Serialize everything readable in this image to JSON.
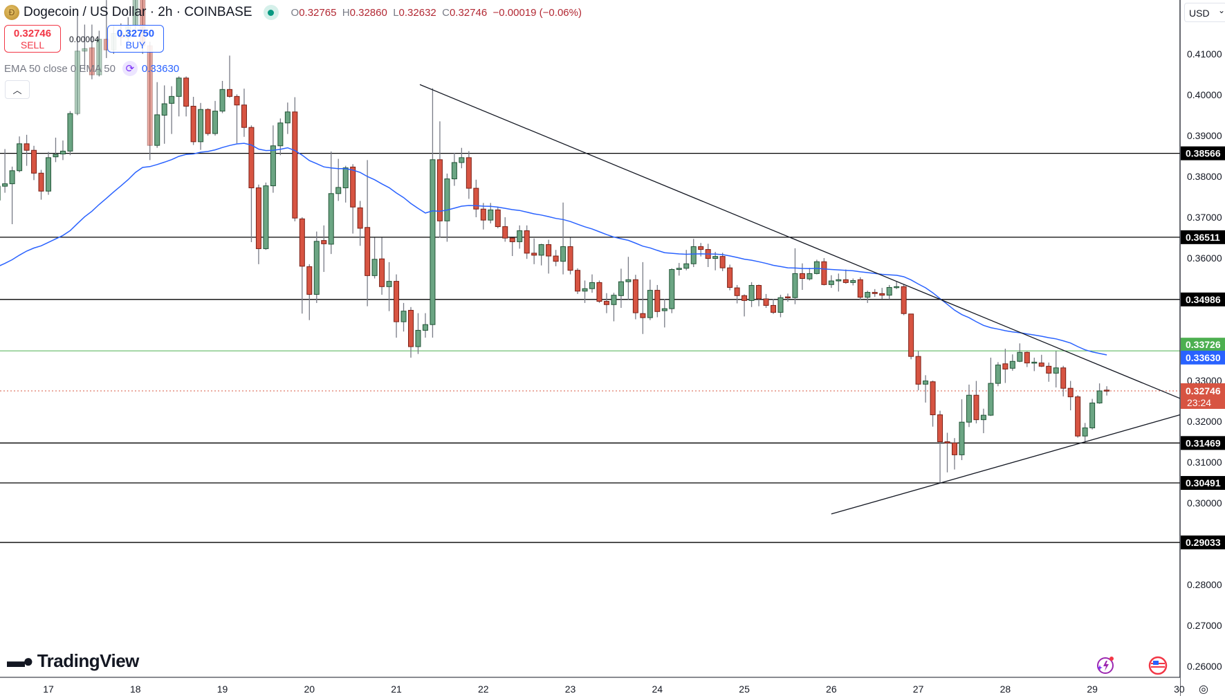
{
  "header": {
    "title": "Dogecoin / US Dollar · 2h · COINBASE",
    "ohlc": {
      "o_label": "O",
      "o": "0.32765",
      "h_label": "H",
      "h": "0.32860",
      "l_label": "L",
      "l": "0.32632",
      "c_label": "C",
      "c": "0.32746",
      "change": "−0.00019 (−0.06%)"
    },
    "status": "market-open"
  },
  "trade": {
    "sell_price": "0.32746",
    "sell_label": "SELL",
    "buy_price": "0.32750",
    "buy_label": "BUY",
    "spread": "0.00004"
  },
  "indicator": {
    "label": "EMA 50 close 0 EMA 50",
    "value": "0.33630",
    "icon": "refresh-icon"
  },
  "currency_button": "USD",
  "brand": "TradingView",
  "colors": {
    "up": "#6ba583",
    "down": "#d75442",
    "ema": "#2962ff",
    "price_line": "#d75442",
    "green_level": "#4caf50",
    "level": "#000000"
  },
  "chart_data": {
    "type": "candlestick",
    "symbol": "Dogecoin / US Dollar",
    "interval_hours": 2,
    "first_candle": "16 10:00",
    "x_tick_labels": [
      "17",
      "18",
      "19",
      "20",
      "21",
      "22",
      "23",
      "24",
      "25",
      "26",
      "27",
      "28",
      "29",
      "30"
    ],
    "y_tick_labels": [
      "0.41000",
      "0.40000",
      "0.39000",
      "0.38000",
      "0.37000",
      "0.36000",
      "0.33000",
      "0.32000",
      "0.31000",
      "0.30000",
      "0.28000",
      "0.27000",
      "0.26000"
    ],
    "ylim": [
      0.256,
      0.4232
    ],
    "ohlc": [
      [
        0.3742,
        0.378,
        0.3735,
        0.3776
      ],
      [
        0.3776,
        0.3867,
        0.376,
        0.3782
      ],
      [
        0.3782,
        0.3824,
        0.3683,
        0.3814
      ],
      [
        0.3814,
        0.3898,
        0.381,
        0.388
      ],
      [
        0.388,
        0.3902,
        0.3826,
        0.3864
      ],
      [
        0.3864,
        0.3875,
        0.3791,
        0.3808
      ],
      [
        0.3808,
        0.3816,
        0.3743,
        0.3764
      ],
      [
        0.3764,
        0.386,
        0.3755,
        0.3846
      ],
      [
        0.3848,
        0.3895,
        0.3835,
        0.3854
      ],
      [
        0.3855,
        0.3888,
        0.384,
        0.3862
      ],
      [
        0.3862,
        0.396,
        0.3852,
        0.3954
      ],
      [
        0.3954,
        0.42,
        0.395,
        0.4107
      ],
      [
        0.4107,
        0.4172,
        0.406,
        0.4113
      ],
      [
        0.4115,
        0.4172,
        0.4038,
        0.4049
      ],
      [
        0.4049,
        0.4157,
        0.4045,
        0.4136
      ],
      [
        0.4136,
        0.4232,
        0.409,
        0.411
      ],
      [
        0.411,
        0.417,
        0.41,
        0.415
      ],
      [
        0.415,
        0.4175,
        0.412,
        0.414
      ],
      [
        0.414,
        0.419,
        0.413,
        0.417
      ],
      [
        0.417,
        0.426,
        0.416,
        0.424
      ],
      [
        0.424,
        0.426,
        0.41,
        0.412
      ],
      [
        0.412,
        0.413,
        0.384,
        0.3876
      ],
      [
        0.3876,
        0.4031,
        0.387,
        0.3951
      ],
      [
        0.395,
        0.4023,
        0.388,
        0.3978
      ],
      [
        0.3979,
        0.4021,
        0.3904,
        0.3996
      ],
      [
        0.3996,
        0.4045,
        0.3947,
        0.4041
      ],
      [
        0.4041,
        0.4045,
        0.3947,
        0.3972
      ],
      [
        0.3972,
        0.3995,
        0.3877,
        0.3885
      ],
      [
        0.3885,
        0.398,
        0.3865,
        0.3964
      ],
      [
        0.3964,
        0.3967,
        0.39,
        0.3905
      ],
      [
        0.3905,
        0.3985,
        0.39,
        0.396
      ],
      [
        0.396,
        0.4034,
        0.3955,
        0.4013
      ],
      [
        0.4013,
        0.4096,
        0.3993,
        0.3996
      ],
      [
        0.3996,
        0.4001,
        0.3881,
        0.3975
      ],
      [
        0.3975,
        0.4015,
        0.3897,
        0.392
      ],
      [
        0.392,
        0.3925,
        0.3639,
        0.3772
      ],
      [
        0.3772,
        0.378,
        0.3585,
        0.3623
      ],
      [
        0.3623,
        0.3785,
        0.362,
        0.3777
      ],
      [
        0.3777,
        0.3925,
        0.376,
        0.3875
      ],
      [
        0.3875,
        0.3942,
        0.3852,
        0.3931
      ],
      [
        0.3931,
        0.3981,
        0.3904,
        0.3958
      ],
      [
        0.3958,
        0.3994,
        0.369,
        0.3698
      ],
      [
        0.3696,
        0.37,
        0.3464,
        0.358
      ],
      [
        0.3579,
        0.3585,
        0.3448,
        0.3511
      ],
      [
        0.3511,
        0.3665,
        0.349,
        0.3641
      ],
      [
        0.3643,
        0.368,
        0.3566,
        0.3635
      ],
      [
        0.3634,
        0.3861,
        0.361,
        0.3758
      ],
      [
        0.3758,
        0.3843,
        0.374,
        0.3773
      ],
      [
        0.3772,
        0.3826,
        0.3736,
        0.3821
      ],
      [
        0.3823,
        0.383,
        0.366,
        0.3725
      ],
      [
        0.3723,
        0.374,
        0.363,
        0.3673
      ],
      [
        0.3675,
        0.384,
        0.3482,
        0.3557
      ],
      [
        0.3557,
        0.365,
        0.355,
        0.3597
      ],
      [
        0.3598,
        0.365,
        0.351,
        0.353
      ],
      [
        0.353,
        0.359,
        0.347,
        0.3543
      ],
      [
        0.3543,
        0.356,
        0.3405,
        0.3444
      ],
      [
        0.3444,
        0.349,
        0.342,
        0.347
      ],
      [
        0.3472,
        0.348,
        0.3356,
        0.3383
      ],
      [
        0.3383,
        0.3465,
        0.3365,
        0.3423
      ],
      [
        0.3423,
        0.3465,
        0.3405,
        0.3437
      ],
      [
        0.3437,
        0.4016,
        0.3405,
        0.3841
      ],
      [
        0.3841,
        0.3935,
        0.365,
        0.3691
      ],
      [
        0.3691,
        0.3807,
        0.364,
        0.3794
      ],
      [
        0.3794,
        0.3858,
        0.3777,
        0.3834
      ],
      [
        0.3834,
        0.387,
        0.382,
        0.3846
      ],
      [
        0.3846,
        0.3862,
        0.3745,
        0.3771
      ],
      [
        0.3771,
        0.3792,
        0.37,
        0.372
      ],
      [
        0.372,
        0.3735,
        0.367,
        0.3693
      ],
      [
        0.3693,
        0.3735,
        0.3685,
        0.3718
      ],
      [
        0.3718,
        0.3726,
        0.3673,
        0.3677
      ],
      [
        0.3677,
        0.37,
        0.364,
        0.3649
      ],
      [
        0.3649,
        0.365,
        0.3605,
        0.364
      ],
      [
        0.364,
        0.368,
        0.3623,
        0.3667
      ],
      [
        0.3667,
        0.368,
        0.3598,
        0.3612
      ],
      [
        0.3612,
        0.3648,
        0.3585,
        0.3607
      ],
      [
        0.3607,
        0.3635,
        0.3582,
        0.3633
      ],
      [
        0.3633,
        0.3645,
        0.3562,
        0.3605
      ],
      [
        0.3605,
        0.362,
        0.358,
        0.3592
      ],
      [
        0.3592,
        0.3736,
        0.356,
        0.3628
      ],
      [
        0.3628,
        0.365,
        0.356,
        0.357
      ],
      [
        0.357,
        0.3575,
        0.3512,
        0.3519
      ],
      [
        0.3519,
        0.3545,
        0.349,
        0.3525
      ],
      [
        0.3525,
        0.356,
        0.3515,
        0.354
      ],
      [
        0.354,
        0.3545,
        0.349,
        0.3494
      ],
      [
        0.3494,
        0.3514,
        0.3465,
        0.3486
      ],
      [
        0.3486,
        0.3515,
        0.3445,
        0.3509
      ],
      [
        0.3508,
        0.3574,
        0.3478,
        0.3542
      ],
      [
        0.3542,
        0.3603,
        0.3498,
        0.3547
      ],
      [
        0.3547,
        0.3559,
        0.345,
        0.3466
      ],
      [
        0.3464,
        0.359,
        0.3414,
        0.3454
      ],
      [
        0.3454,
        0.3547,
        0.3448,
        0.3521
      ],
      [
        0.3521,
        0.3534,
        0.3455,
        0.3469
      ],
      [
        0.3471,
        0.35,
        0.343,
        0.3476
      ],
      [
        0.3476,
        0.3575,
        0.3465,
        0.3572
      ],
      [
        0.3572,
        0.3588,
        0.3557,
        0.3575
      ],
      [
        0.3575,
        0.362,
        0.357,
        0.3586
      ],
      [
        0.3586,
        0.3647,
        0.3578,
        0.3628
      ],
      [
        0.3628,
        0.3637,
        0.3604,
        0.3621
      ],
      [
        0.3621,
        0.3635,
        0.3578,
        0.3599
      ],
      [
        0.3599,
        0.3615,
        0.357,
        0.3604
      ],
      [
        0.3604,
        0.3613,
        0.3568,
        0.3576
      ],
      [
        0.3576,
        0.3584,
        0.3521,
        0.3528
      ],
      [
        0.3527,
        0.3534,
        0.3489,
        0.3508
      ],
      [
        0.3508,
        0.3511,
        0.3457,
        0.3496
      ],
      [
        0.3496,
        0.3541,
        0.348,
        0.3533
      ],
      [
        0.3533,
        0.3535,
        0.3482,
        0.35
      ],
      [
        0.35,
        0.3512,
        0.3478,
        0.3484
      ],
      [
        0.3484,
        0.35,
        0.3463,
        0.3467
      ],
      [
        0.3467,
        0.351,
        0.3455,
        0.3503
      ],
      [
        0.3505,
        0.3513,
        0.3493,
        0.3504
      ],
      [
        0.3503,
        0.3624,
        0.3487,
        0.3562
      ],
      [
        0.3562,
        0.3587,
        0.3522,
        0.355
      ],
      [
        0.3549,
        0.3576,
        0.3545,
        0.3562
      ],
      [
        0.3562,
        0.3596,
        0.356,
        0.3591
      ],
      [
        0.3591,
        0.36,
        0.3533,
        0.3535
      ],
      [
        0.3535,
        0.3558,
        0.3527,
        0.3544
      ],
      [
        0.3544,
        0.3562,
        0.3518,
        0.3547
      ],
      [
        0.3547,
        0.3572,
        0.3537,
        0.354
      ],
      [
        0.354,
        0.355,
        0.3533,
        0.3545
      ],
      [
        0.3547,
        0.3553,
        0.3498,
        0.3504
      ],
      [
        0.3504,
        0.352,
        0.349,
        0.3516
      ],
      [
        0.3516,
        0.3524,
        0.3505,
        0.3513
      ],
      [
        0.3513,
        0.3527,
        0.35,
        0.3509
      ],
      [
        0.3509,
        0.3534,
        0.3499,
        0.3528
      ],
      [
        0.3528,
        0.3542,
        0.3524,
        0.353
      ],
      [
        0.353,
        0.3536,
        0.346,
        0.3464
      ],
      [
        0.3463,
        0.3463,
        0.3352,
        0.3359
      ],
      [
        0.3359,
        0.3372,
        0.3276,
        0.3291
      ],
      [
        0.3291,
        0.3313,
        0.3246,
        0.3299
      ],
      [
        0.3297,
        0.33,
        0.3187,
        0.3216
      ],
      [
        0.3216,
        0.3226,
        0.305,
        0.315
      ],
      [
        0.315,
        0.3172,
        0.3075,
        0.3147
      ],
      [
        0.3147,
        0.3159,
        0.3082,
        0.3118
      ],
      [
        0.3118,
        0.3254,
        0.3105,
        0.3198
      ],
      [
        0.3198,
        0.329,
        0.3186,
        0.3264
      ],
      [
        0.3264,
        0.3299,
        0.3195,
        0.3204
      ],
      [
        0.3204,
        0.3231,
        0.3171,
        0.3215
      ],
      [
        0.3215,
        0.3356,
        0.3213,
        0.3293
      ],
      [
        0.3293,
        0.3345,
        0.3286,
        0.3338
      ],
      [
        0.3341,
        0.3378,
        0.3294,
        0.3328
      ],
      [
        0.333,
        0.3364,
        0.3324,
        0.3347
      ],
      [
        0.3347,
        0.3391,
        0.3345,
        0.3369
      ],
      [
        0.3369,
        0.3371,
        0.3333,
        0.3343
      ],
      [
        0.3343,
        0.3356,
        0.3323,
        0.3345
      ],
      [
        0.3343,
        0.3363,
        0.3333,
        0.3335
      ],
      [
        0.3335,
        0.3344,
        0.3297,
        0.3318
      ],
      [
        0.3318,
        0.3372,
        0.3283,
        0.3331
      ],
      [
        0.3331,
        0.3336,
        0.3261,
        0.3281
      ],
      [
        0.3281,
        0.3299,
        0.3227,
        0.326
      ],
      [
        0.326,
        0.3264,
        0.316,
        0.3164
      ],
      [
        0.3164,
        0.3196,
        0.315,
        0.3184
      ],
      [
        0.3184,
        0.3255,
        0.318,
        0.3245
      ],
      [
        0.3245,
        0.3293,
        0.3243,
        0.32746
      ],
      [
        0.32765,
        0.3286,
        0.32632,
        0.32746
      ]
    ],
    "ema": {
      "period": 50,
      "last_value": "0.33630"
    },
    "horizontal_levels": [
      {
        "price": "0.38566",
        "style": "solid-black"
      },
      {
        "price": "0.36511",
        "style": "solid-black"
      },
      {
        "price": "0.34986",
        "style": "solid-black"
      },
      {
        "price": "0.33726",
        "style": "thin-green"
      },
      {
        "price": "0.31469",
        "style": "solid-black"
      },
      {
        "price": "0.30491",
        "style": "solid-black"
      },
      {
        "price": "0.29033",
        "style": "solid-black"
      }
    ],
    "trendlines": [
      {
        "from_day": 21.27,
        "from_price": 0.4025,
        "to_day": 30.01,
        "to_price": 0.3256
      },
      {
        "from_day": 26.0,
        "from_price": 0.2973,
        "to_day": 30.01,
        "to_price": 0.3216
      }
    ],
    "last_price": {
      "price": "0.32746",
      "countdown": "23:24"
    }
  }
}
